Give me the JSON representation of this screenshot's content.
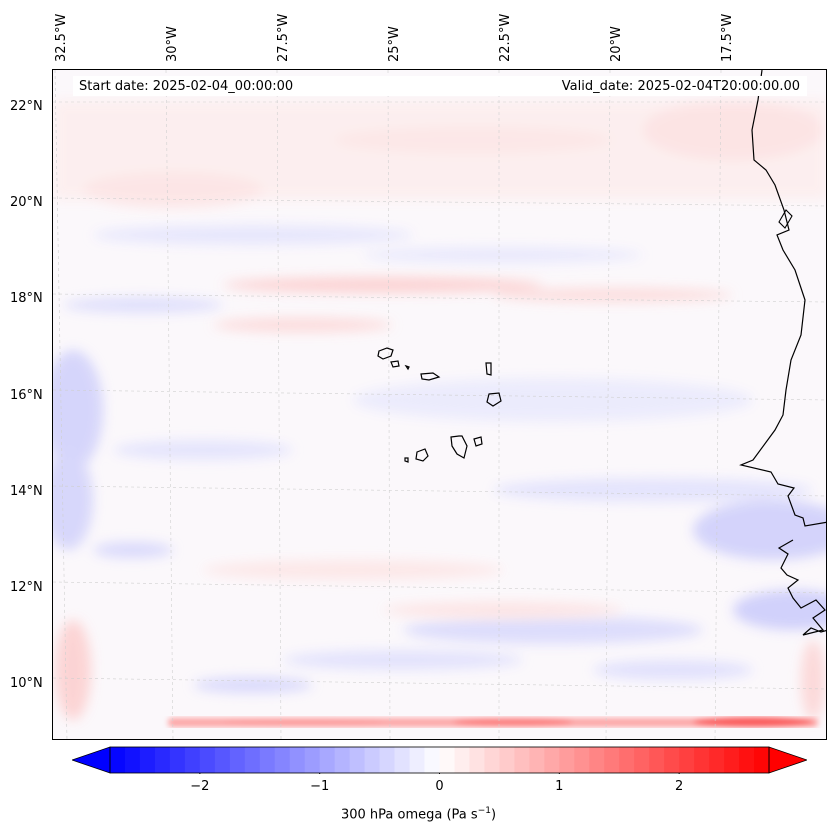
{
  "map": {
    "start_date": "Start date: 2025-02-04_00:00:00",
    "valid_date": "Valid_date: 2025-02-04T20:00:00.00",
    "lon_labels": [
      "32.5°W",
      "30°W",
      "27.5°W",
      "25°W",
      "22.5°W",
      "20°W",
      "17.5°W"
    ],
    "lat_labels": [
      "22°N",
      "20°N",
      "18°N",
      "16°N",
      "14°N",
      "12°N",
      "10°N"
    ],
    "variable": "300 hPa omega",
    "units": "Pa s",
    "units_exponent": "−1"
  },
  "colorbar": {
    "ticks": [
      "−2",
      "−1",
      "0",
      "1",
      "2"
    ],
    "tick_values": [
      -2,
      -1,
      0,
      1,
      2
    ],
    "range": [
      -2.75,
      2.75
    ],
    "levels": 44,
    "min_color": "#0000ff",
    "mid_color": "#ffffff",
    "max_color": "#ff0000"
  },
  "colors": {
    "positive": "#ff0000",
    "negative": "#0000ff",
    "coast": "#000000"
  }
}
